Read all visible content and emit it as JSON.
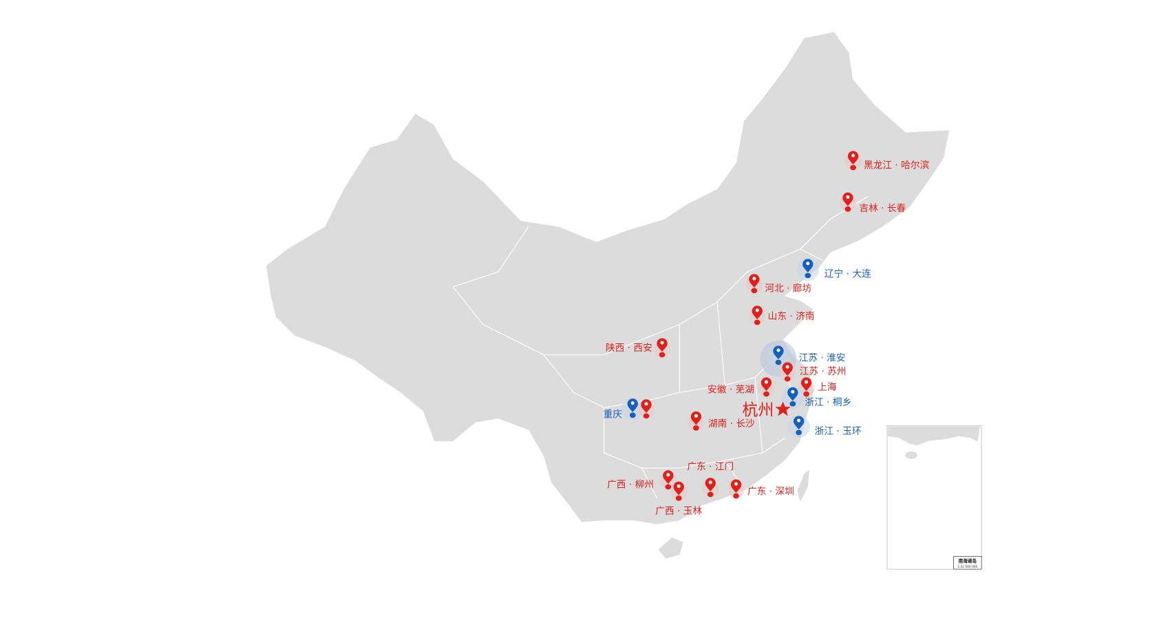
{
  "colors": {
    "land": "#dcdcdc",
    "border": "#ffffff",
    "red": "#e0201b",
    "blue": "#1560bd",
    "halo": "#b8c6da"
  },
  "capital": {
    "label": "杭州",
    "icon": "star-icon"
  },
  "markers": [
    {
      "label": "黑龙江 · 哈尔滨",
      "color": "red"
    },
    {
      "label": "吉林 · 长春",
      "color": "red"
    },
    {
      "label": "辽宁 · 大连",
      "color": "blue"
    },
    {
      "label": "河北 · 廊坊",
      "color": "red"
    },
    {
      "label": "山东 · 济南",
      "color": "red"
    },
    {
      "label": "陕西 · 西安",
      "color": "red"
    },
    {
      "label": "江苏 · 淮安",
      "color": "blue"
    },
    {
      "label": "江苏 · 苏州",
      "color": "red"
    },
    {
      "label": "上海",
      "color": "red"
    },
    {
      "label": "安徽 · 芜湖",
      "color": "red"
    },
    {
      "label": "浙江 · 桐乡",
      "color": "blue"
    },
    {
      "label": "浙江 · 玉环",
      "color": "blue"
    },
    {
      "label": "重庆",
      "color": "blue"
    },
    {
      "label": "",
      "color": "red"
    },
    {
      "label": "湖南 · 长沙",
      "color": "red"
    },
    {
      "label": "广东 · 江门",
      "color": "red"
    },
    {
      "label": "广西 · 柳州",
      "color": "red"
    },
    {
      "label": "广西 · 玉林",
      "color": "red"
    },
    {
      "label": "广东 · 深圳",
      "color": "red"
    }
  ],
  "inset": {
    "title": "南海诸岛",
    "scale": "1:32 000 000"
  }
}
